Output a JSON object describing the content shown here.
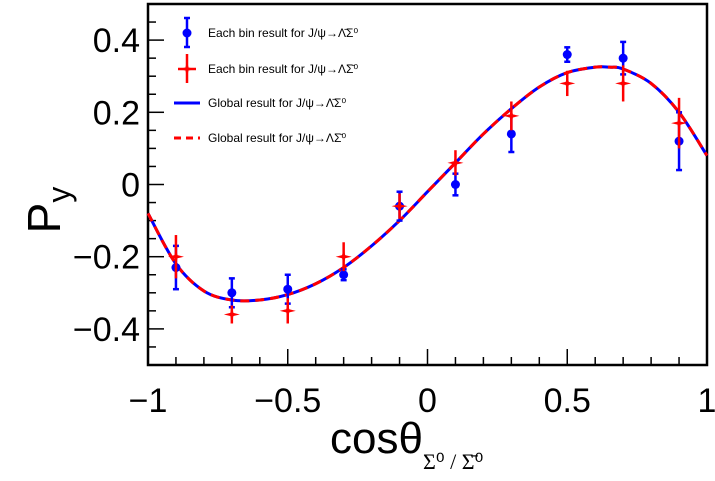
{
  "chart_data": {
    "type": "scatter",
    "xlabel": "cosθ",
    "xlabel_sub": "Σ⁰ / Σ̄⁰",
    "ylabel": "P",
    "ylabel_sub": "y",
    "xlim": [
      -1,
      1
    ],
    "ylim": [
      -0.5,
      0.5
    ],
    "x_ticks": [
      -1,
      -0.5,
      0,
      0.5,
      1
    ],
    "x_tick_labels": [
      "−1",
      "−0.5",
      "0",
      "0.5",
      "1"
    ],
    "y_ticks": [
      -0.4,
      -0.2,
      0,
      0.2,
      0.4
    ],
    "y_tick_labels": [
      "−0.4",
      "−0.2",
      "0",
      "0.2",
      "0.4"
    ],
    "legend_position": "top",
    "series": [
      {
        "name": "Each bin result for J/ψ→Λ̄Σ⁰",
        "kind": "points-with-errors",
        "marker": "circle",
        "color": "#0000ff",
        "x": [
          -0.9,
          -0.7,
          -0.5,
          -0.3,
          -0.1,
          0.1,
          0.3,
          0.5,
          0.7,
          0.9
        ],
        "y": [
          -0.23,
          -0.3,
          -0.29,
          -0.25,
          -0.06,
          0.0,
          0.14,
          0.36,
          0.35,
          0.12
        ],
        "yerr": [
          0.06,
          0.04,
          0.04,
          0.015,
          0.04,
          0.03,
          0.05,
          0.02,
          0.045,
          0.08
        ]
      },
      {
        "name": "Each bin result for J/ψ→ΛΣ̄⁰",
        "kind": "points-with-errors",
        "marker": "star",
        "color": "#ff0000",
        "x": [
          -0.9,
          -0.7,
          -0.5,
          -0.3,
          -0.1,
          0.1,
          0.3,
          0.5,
          0.7,
          0.9
        ],
        "y": [
          -0.2,
          -0.36,
          -0.35,
          -0.2,
          -0.06,
          0.06,
          0.19,
          0.28,
          0.28,
          0.17
        ],
        "yerr": [
          0.06,
          0.025,
          0.035,
          0.04,
          0.035,
          0.035,
          0.04,
          0.035,
          0.05,
          0.07
        ]
      },
      {
        "name": "Global result for J/ψ→Λ̄Σ⁰",
        "kind": "curve",
        "style": "solid",
        "color": "#0000ff",
        "x": [
          -1.0,
          -0.9,
          -0.8,
          -0.7,
          -0.6,
          -0.5,
          -0.4,
          -0.3,
          -0.2,
          -0.1,
          0.0,
          0.1,
          0.2,
          0.3,
          0.4,
          0.5,
          0.6,
          0.65,
          0.7,
          0.8,
          0.9,
          1.0
        ],
        "y": [
          -0.08,
          -0.22,
          -0.295,
          -0.32,
          -0.32,
          -0.305,
          -0.275,
          -0.23,
          -0.17,
          -0.1,
          -0.02,
          0.06,
          0.14,
          0.21,
          0.27,
          0.31,
          0.325,
          0.325,
          0.32,
          0.28,
          0.2,
          0.08
        ]
      },
      {
        "name": "Global result for J/ψ→ΛΣ̄⁰",
        "kind": "curve",
        "style": "dashed",
        "color": "#ff0000",
        "x": [
          -1.0,
          -0.9,
          -0.8,
          -0.7,
          -0.6,
          -0.5,
          -0.4,
          -0.3,
          -0.2,
          -0.1,
          0.0,
          0.1,
          0.2,
          0.3,
          0.4,
          0.5,
          0.6,
          0.65,
          0.7,
          0.8,
          0.9,
          1.0
        ],
        "y": [
          -0.08,
          -0.22,
          -0.295,
          -0.32,
          -0.32,
          -0.305,
          -0.275,
          -0.23,
          -0.17,
          -0.1,
          -0.02,
          0.06,
          0.14,
          0.21,
          0.27,
          0.31,
          0.325,
          0.325,
          0.32,
          0.28,
          0.2,
          0.08
        ]
      }
    ]
  }
}
